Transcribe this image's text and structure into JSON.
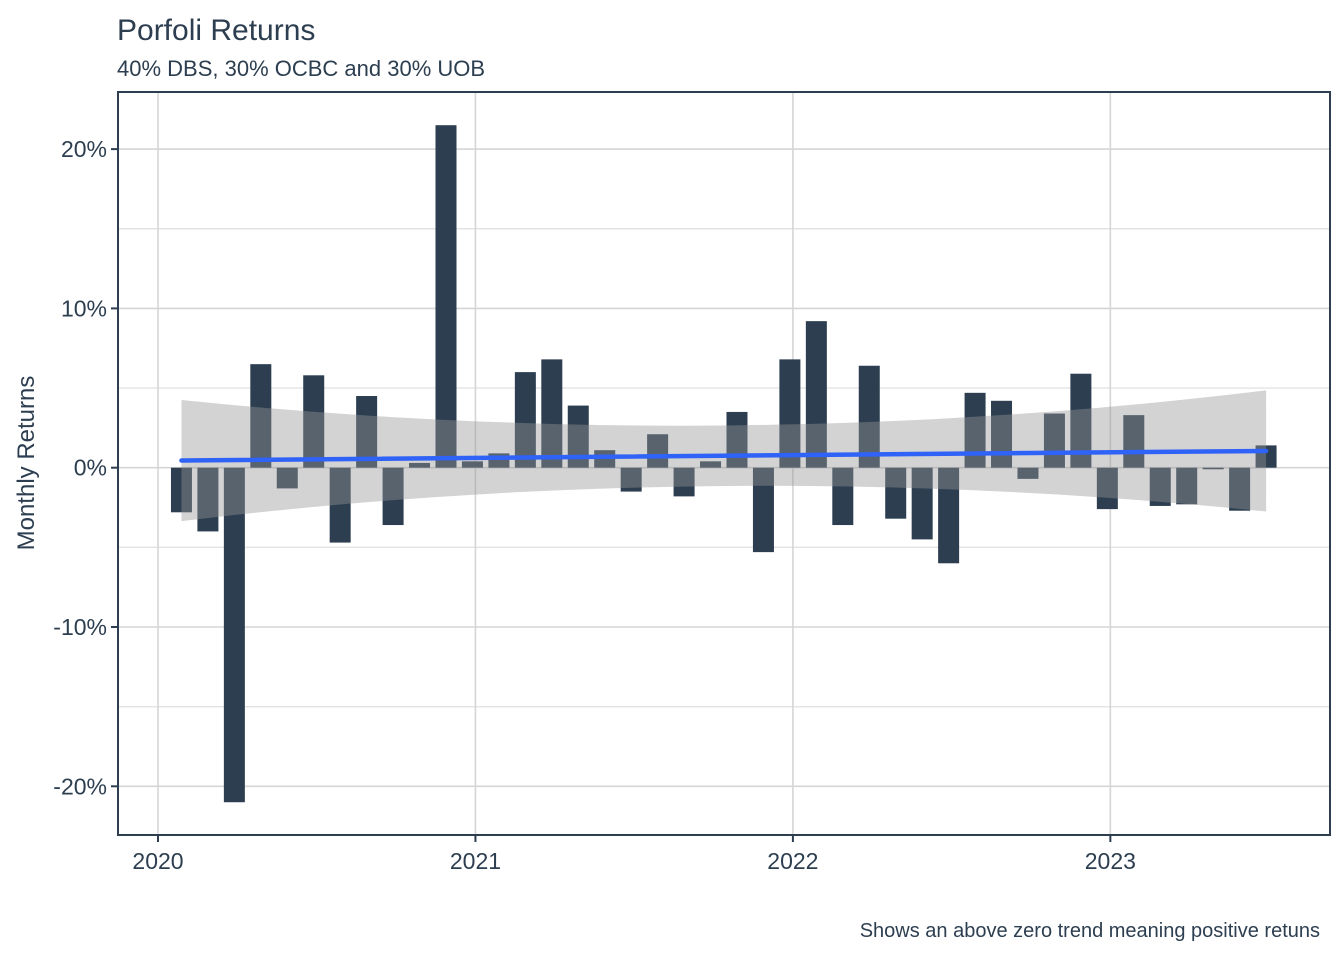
{
  "colors": {
    "background": "#ffffff",
    "bar": "#2c3e50",
    "text": "#2c3e50",
    "panel_border": "#2c3e50",
    "grid_major": "#d5d5d5",
    "grid_minor": "#e3e3e3",
    "trend": "#2f63f7",
    "band": "rgba(150,150,153,0.42)"
  },
  "chart_data": {
    "type": "bar",
    "title": "Porfoli Returns",
    "subtitle": "40% DBS, 30% OCBC and 30% UOB",
    "caption": "Shows an above zero trend meaning positive retuns",
    "xlabel": "",
    "ylabel": "Monthly Returns",
    "x_unit": "month",
    "categories": [
      "2020-02",
      "2020-03",
      "2020-04",
      "2020-05",
      "2020-06",
      "2020-07",
      "2020-08",
      "2020-09",
      "2020-10",
      "2020-11",
      "2020-12",
      "2021-01",
      "2021-02",
      "2021-03",
      "2021-04",
      "2021-05",
      "2021-06",
      "2021-07",
      "2021-08",
      "2021-09",
      "2021-10",
      "2021-11",
      "2021-12",
      "2022-01",
      "2022-02",
      "2022-03",
      "2022-04",
      "2022-05",
      "2022-06",
      "2022-07",
      "2022-08",
      "2022-09",
      "2022-10",
      "2022-11",
      "2022-12",
      "2023-01",
      "2023-02",
      "2023-03",
      "2023-04",
      "2023-05",
      "2023-06",
      "2023-07"
    ],
    "values_pct": [
      -2.8,
      -4.0,
      -21.0,
      6.5,
      -1.3,
      5.8,
      -4.7,
      4.5,
      -3.6,
      0.3,
      21.5,
      0.4,
      0.9,
      6.0,
      6.8,
      3.9,
      1.1,
      -1.5,
      2.1,
      -1.8,
      0.4,
      3.5,
      -5.3,
      6.8,
      9.2,
      -3.6,
      6.4,
      -3.2,
      -4.5,
      -6.0,
      4.7,
      4.2,
      -0.7,
      3.4,
      5.9,
      -2.6,
      3.3,
      -2.4,
      -2.3,
      -0.1,
      -2.7,
      1.4
    ],
    "x_tick_labels": [
      "2020",
      "2021",
      "2022",
      "2023"
    ],
    "y_tick_labels": [
      "20%",
      "10%",
      "0%",
      "-10%",
      "-20%"
    ],
    "y_tick_values_pct": [
      20,
      10,
      0,
      -10,
      -20
    ],
    "y_minor_tick_values_pct": [
      15,
      5,
      -5,
      -15
    ],
    "ylim_pct": [
      -23.1,
      23.6
    ],
    "grid": "horizontal major+minor, vertical major at years",
    "legend": "none",
    "trend_line": {
      "type": "linear",
      "start_month": "2020-02",
      "end_month": "2023-07",
      "start_value_pct": 0.45,
      "end_value_pct": 1.05
    },
    "confidence_band": {
      "start_month": "2020-02",
      "end_month": "2023-07",
      "half_width_mid_pct": 1.9,
      "half_width_end_pct": 3.8
    }
  }
}
